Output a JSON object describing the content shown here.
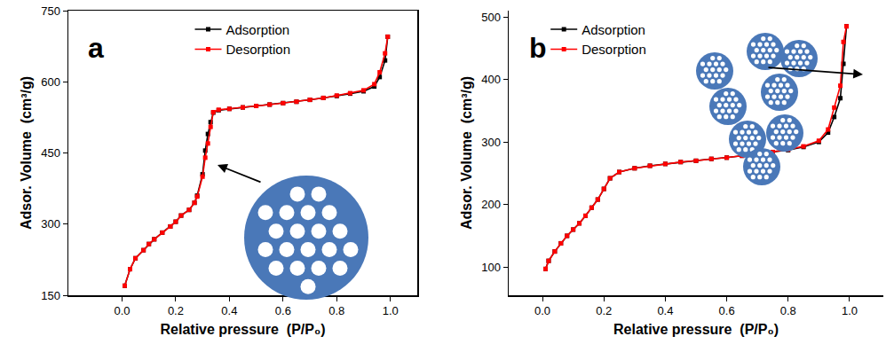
{
  "chart_data": [
    {
      "type": "line",
      "title": "a",
      "x_label": "Relative pressure  (P/P₀)",
      "y_label": "Adsor. Volume  (cm³/g)",
      "xlim": [
        -0.2,
        1.1
      ],
      "ylim": [
        150,
        750
      ],
      "xticks": [
        {
          "value": 0,
          "label": "0.0"
        },
        0.2,
        0.4,
        0.6,
        0.8,
        {
          "value": 1,
          "label": "1.0"
        }
      ],
      "yticks": [
        150,
        300,
        450,
        600,
        750
      ],
      "grid": false,
      "legend": "top",
      "marker": "square",
      "series": [
        {
          "name": "Adsorption",
          "color": "#000000",
          "x": [
            0.01,
            0.03,
            0.05,
            0.08,
            0.1,
            0.12,
            0.15,
            0.18,
            0.2,
            0.22,
            0.25,
            0.27,
            0.28,
            0.3,
            0.31,
            0.32,
            0.33,
            0.34,
            0.36,
            0.4,
            0.45,
            0.5,
            0.55,
            0.6,
            0.65,
            0.7,
            0.75,
            0.8,
            0.85,
            0.9,
            0.94,
            0.96,
            0.98,
            0.99
          ],
          "values": [
            170,
            205,
            228,
            245,
            258,
            268,
            282,
            295,
            305,
            318,
            330,
            345,
            360,
            405,
            455,
            490,
            515,
            535,
            540,
            543,
            546,
            549,
            552,
            555,
            558,
            562,
            566,
            570,
            575,
            580,
            590,
            610,
            645,
            695
          ]
        },
        {
          "name": "Desorption",
          "color": "#ff0000",
          "x": [
            0.99,
            0.98,
            0.96,
            0.94,
            0.9,
            0.85,
            0.8,
            0.75,
            0.7,
            0.65,
            0.6,
            0.55,
            0.5,
            0.45,
            0.4,
            0.36,
            0.34,
            0.33,
            0.32,
            0.31,
            0.3,
            0.28,
            0.27,
            0.25,
            0.22,
            0.2,
            0.18,
            0.15,
            0.12,
            0.1,
            0.08,
            0.05,
            0.03,
            0.01
          ],
          "values": [
            695,
            660,
            620,
            595,
            582,
            576,
            571,
            566,
            562,
            558,
            555,
            552,
            549,
            546,
            543,
            541,
            536,
            505,
            470,
            440,
            400,
            358,
            345,
            330,
            318,
            305,
            295,
            282,
            268,
            258,
            245,
            228,
            205,
            170
          ]
        }
      ]
    },
    {
      "type": "line",
      "title": "b",
      "x_label": "Relative pressure  (P/P₀)",
      "y_label": "Adsor. Volume  (cm³/g)",
      "xlim": [
        -0.11,
        1.11
      ],
      "ylim": [
        55,
        510
      ],
      "xticks": [
        {
          "value": 0,
          "label": "0.0"
        },
        0.2,
        0.4,
        0.6,
        0.8,
        {
          "value": 1,
          "label": "1.0"
        }
      ],
      "yticks": [
        100,
        200,
        300,
        400,
        500
      ],
      "grid": false,
      "legend": "top left",
      "marker": "square",
      "series": [
        {
          "name": "Adsorption",
          "color": "#000000",
          "x": [
            0.01,
            0.02,
            0.04,
            0.06,
            0.08,
            0.1,
            0.12,
            0.14,
            0.16,
            0.18,
            0.2,
            0.22,
            0.25,
            0.3,
            0.35,
            0.4,
            0.45,
            0.5,
            0.55,
            0.6,
            0.65,
            0.7,
            0.75,
            0.8,
            0.85,
            0.9,
            0.93,
            0.95,
            0.97,
            0.98,
            0.99
          ],
          "values": [
            97,
            110,
            125,
            138,
            150,
            160,
            170,
            182,
            195,
            208,
            225,
            242,
            252,
            258,
            262,
            265,
            268,
            270,
            273,
            275,
            278,
            280,
            283,
            287,
            292,
            300,
            315,
            340,
            370,
            425,
            485
          ]
        },
        {
          "name": "Desorption",
          "color": "#ff0000",
          "x": [
            0.99,
            0.98,
            0.97,
            0.95,
            0.93,
            0.9,
            0.85,
            0.8,
            0.75,
            0.7,
            0.65,
            0.6,
            0.55,
            0.5,
            0.45,
            0.4,
            0.35,
            0.3,
            0.25,
            0.22,
            0.2,
            0.18,
            0.16,
            0.14,
            0.12,
            0.1,
            0.08,
            0.06,
            0.04,
            0.02,
            0.01
          ],
          "values": [
            485,
            460,
            390,
            355,
            320,
            302,
            293,
            288,
            284,
            281,
            278,
            275,
            273,
            270,
            268,
            265,
            262,
            258,
            252,
            242,
            225,
            208,
            195,
            182,
            170,
            160,
            150,
            138,
            125,
            110,
            97
          ]
        }
      ]
    }
  ]
}
